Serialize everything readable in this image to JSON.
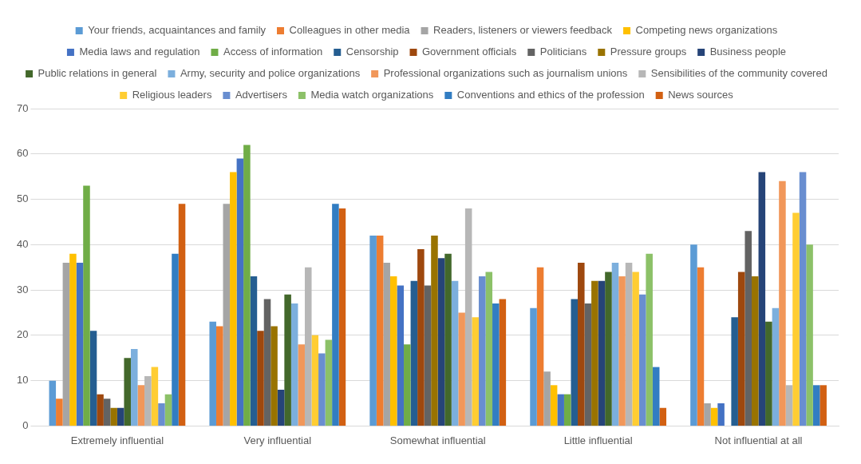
{
  "chart_data": {
    "type": "bar",
    "categories": [
      "Extremely influential",
      "Very influential",
      "Somewhat influential",
      "Little influential",
      "Not influential at all"
    ],
    "series": [
      {
        "name": "Your friends, acquaintances and family",
        "color": "#5b9bd5",
        "values": [
          10,
          23,
          42,
          26,
          40
        ]
      },
      {
        "name": "Colleagues in other media",
        "color": "#ed7d31",
        "values": [
          6,
          22,
          42,
          35,
          35
        ]
      },
      {
        "name": "Readers, listeners or viewers feedback",
        "color": "#a5a5a5",
        "values": [
          36,
          49,
          36,
          12,
          5
        ]
      },
      {
        "name": "Competing news organizations",
        "color": "#ffc000",
        "values": [
          38,
          56,
          33,
          9,
          4
        ]
      },
      {
        "name": "Media laws and regulation",
        "color": "#4472c4",
        "values": [
          36,
          59,
          31,
          7,
          5
        ]
      },
      {
        "name": "Access of information",
        "color": "#70ad47",
        "values": [
          53,
          62,
          18,
          7,
          0
        ]
      },
      {
        "name": "Censorship",
        "color": "#255e91",
        "values": [
          21,
          33,
          32,
          28,
          24
        ]
      },
      {
        "name": "Government officials",
        "color": "#9e480e",
        "values": [
          7,
          21,
          39,
          36,
          34
        ]
      },
      {
        "name": "Politicians",
        "color": "#636363",
        "values": [
          6,
          28,
          31,
          27,
          43
        ]
      },
      {
        "name": "Pressure groups",
        "color": "#997300",
        "values": [
          4,
          22,
          42,
          32,
          33
        ]
      },
      {
        "name": "Business people",
        "color": "#264478",
        "values": [
          4,
          8,
          37,
          32,
          56
        ]
      },
      {
        "name": "Public relations in general",
        "color": "#43682b",
        "values": [
          15,
          29,
          38,
          34,
          23
        ]
      },
      {
        "name": "Army, security and police organizations",
        "color": "#7cafdd",
        "values": [
          17,
          27,
          32,
          36,
          26
        ]
      },
      {
        "name": "Professional organizations such as journalism unions",
        "color": "#f1975a",
        "values": [
          9,
          18,
          25,
          33,
          54
        ]
      },
      {
        "name": "Sensibilities of the community covered",
        "color": "#b7b7b7",
        "values": [
          11,
          35,
          48,
          36,
          9
        ]
      },
      {
        "name": "Religious leaders",
        "color": "#ffcd33",
        "values": [
          13,
          20,
          24,
          34,
          47
        ]
      },
      {
        "name": "Advertisers",
        "color": "#698ed0",
        "values": [
          5,
          16,
          33,
          29,
          56
        ]
      },
      {
        "name": "Media watch organizations",
        "color": "#8cc168",
        "values": [
          7,
          19,
          34,
          38,
          40
        ]
      },
      {
        "name": "Conventions and ethics of the profession",
        "color": "#327dc2",
        "values": [
          38,
          49,
          27,
          13,
          9
        ]
      },
      {
        "name": "News sources",
        "color": "#d26012",
        "values": [
          49,
          48,
          28,
          4,
          9
        ]
      }
    ],
    "ylim": [
      0,
      70
    ],
    "yticks": [
      0,
      10,
      20,
      30,
      40,
      50,
      60,
      70
    ],
    "grid": "y",
    "legend": "top"
  }
}
